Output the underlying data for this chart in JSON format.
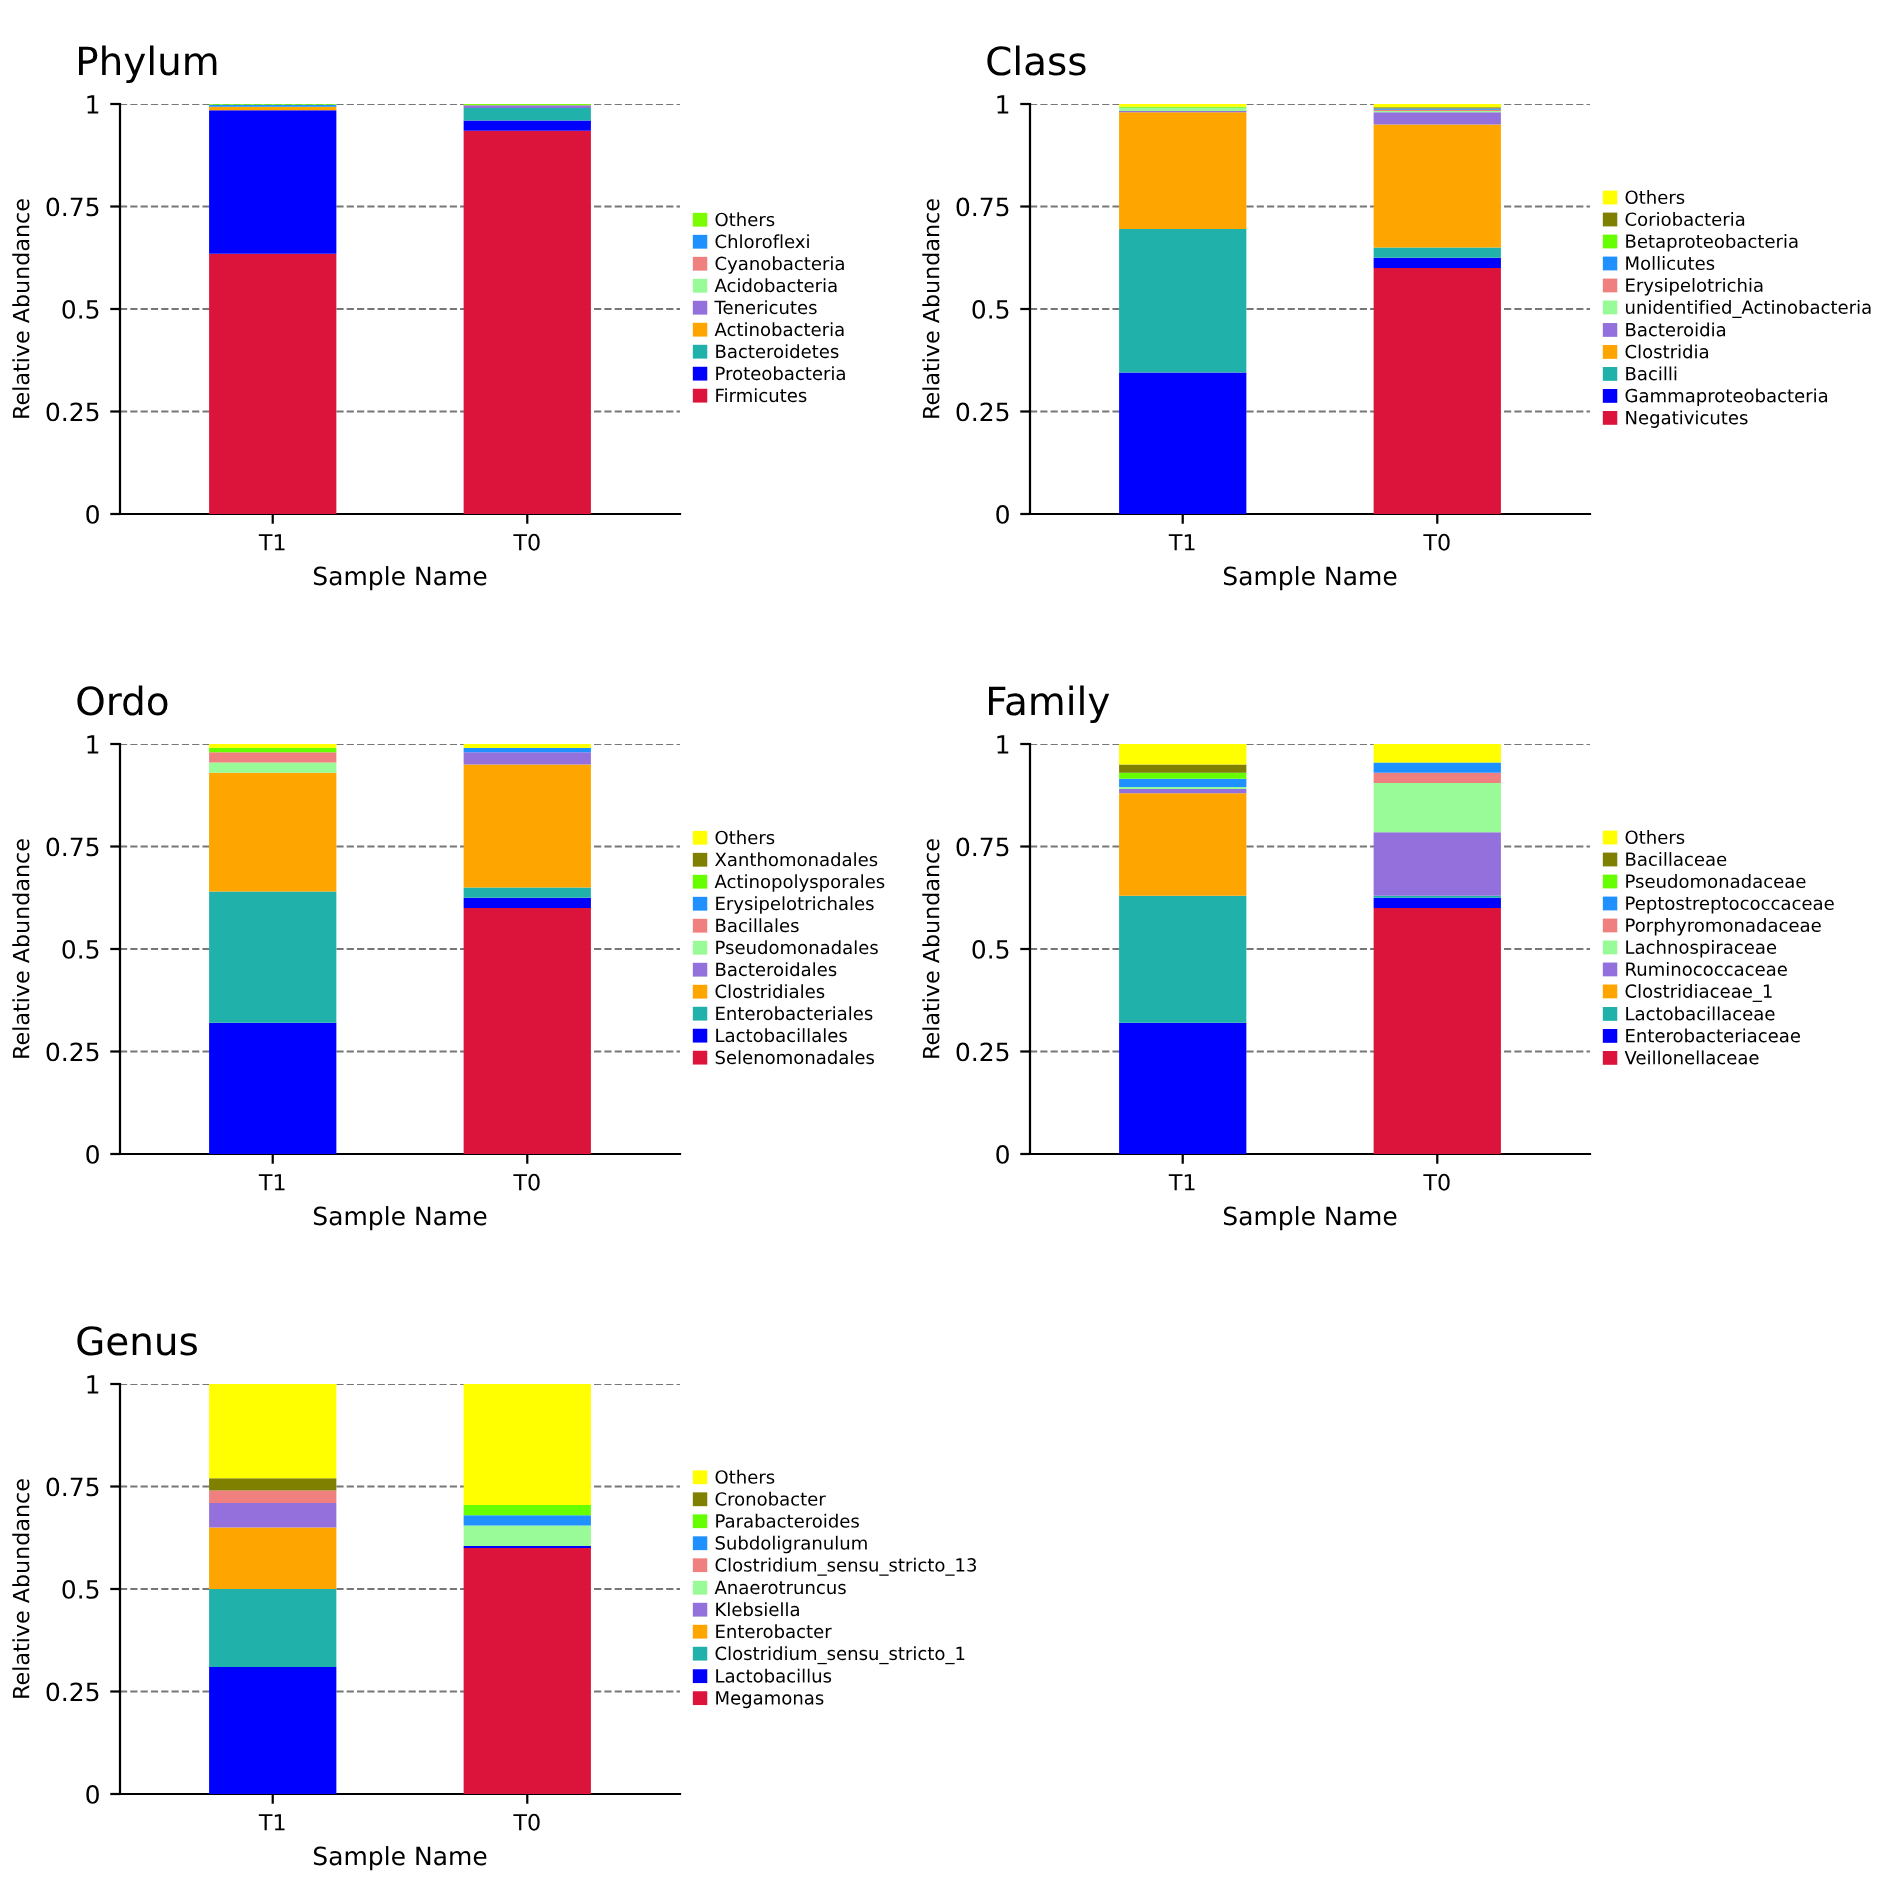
{
  "chart_data": [
    {
      "type": "bar",
      "title": "Phylum",
      "xlabel": "Sample Name",
      "ylabel": "Relative Abundance",
      "categories": [
        "T1",
        "T0"
      ],
      "stacked": true,
      "ylim": [
        0,
        1
      ],
      "yticks": [
        0,
        0.25,
        0.5,
        0.75,
        1
      ],
      "grid": "y",
      "legend": "right",
      "series": [
        {
          "name": "Firmicutes",
          "color": "#dc143c",
          "values": [
            0.635,
            0.935
          ]
        },
        {
          "name": "Proteobacteria",
          "color": "#0000ff",
          "values": [
            0.35,
            0.025
          ]
        },
        {
          "name": "Bacteroidetes",
          "color": "#20b2aa",
          "values": [
            0,
            0.03
          ]
        },
        {
          "name": "Actinobacteria",
          "color": "#ffa500",
          "values": [
            0.008,
            0
          ]
        },
        {
          "name": "Tenericutes",
          "color": "#9370db",
          "values": [
            0,
            0.007
          ]
        },
        {
          "name": "Acidobacteria",
          "color": "#98fb98",
          "values": [
            0,
            0
          ]
        },
        {
          "name": "Cyanobacteria",
          "color": "#f08080",
          "values": [
            0,
            0
          ]
        },
        {
          "name": "Chloroflexi",
          "color": "#1e90ff",
          "values": [
            0.005,
            0
          ]
        },
        {
          "name": "Others",
          "color": "#7cfc00",
          "values": [
            0.002,
            0.003
          ]
        }
      ]
    },
    {
      "type": "bar",
      "title": "Class",
      "xlabel": "Sample Name",
      "ylabel": "Relative Abundance",
      "categories": [
        "T1",
        "T0"
      ],
      "stacked": true,
      "ylim": [
        0,
        1
      ],
      "yticks": [
        0,
        0.25,
        0.5,
        0.75,
        1
      ],
      "grid": "y",
      "legend": "right",
      "series": [
        {
          "name": "Negativicutes",
          "color": "#dc143c",
          "values": [
            0,
            0.6
          ]
        },
        {
          "name": "Gammaproteobacteria",
          "color": "#0000ff",
          "values": [
            0.345,
            0.025
          ]
        },
        {
          "name": "Bacilli",
          "color": "#20b2aa",
          "values": [
            0.35,
            0.025
          ]
        },
        {
          "name": "Clostridia",
          "color": "#ffa500",
          "values": [
            0.285,
            0.3
          ]
        },
        {
          "name": "Bacteroidia",
          "color": "#9370db",
          "values": [
            0.003,
            0.03
          ]
        },
        {
          "name": "unidentified_Actinobacteria",
          "color": "#98fb98",
          "values": [
            0.008,
            0.003
          ]
        },
        {
          "name": "Erysipelotrichia",
          "color": "#f08080",
          "values": [
            0,
            0.003
          ]
        },
        {
          "name": "Mollicutes",
          "color": "#1e90ff",
          "values": [
            0,
            0.003
          ]
        },
        {
          "name": "Betaproteobacteria",
          "color": "#66ff00",
          "values": [
            0.002,
            0
          ]
        },
        {
          "name": "Coriobacteria",
          "color": "#808000",
          "values": [
            0,
            0.003
          ]
        },
        {
          "name": "Others",
          "color": "#ffff00",
          "values": [
            0.007,
            0.008
          ]
        }
      ]
    },
    {
      "type": "bar",
      "title": "Ordo",
      "xlabel": "Sample Name",
      "ylabel": "Relative Abundance",
      "categories": [
        "T1",
        "T0"
      ],
      "stacked": true,
      "ylim": [
        0,
        1
      ],
      "yticks": [
        0,
        0.25,
        0.5,
        0.75,
        1
      ],
      "grid": "y",
      "legend": "right",
      "series": [
        {
          "name": "Selenomonadales",
          "color": "#dc143c",
          "values": [
            0,
            0.6
          ]
        },
        {
          "name": "Lactobacillales",
          "color": "#0000ff",
          "values": [
            0.32,
            0.025
          ]
        },
        {
          "name": "Enterobacteriales",
          "color": "#20b2aa",
          "values": [
            0.32,
            0.025
          ]
        },
        {
          "name": "Clostridiales",
          "color": "#ffa500",
          "values": [
            0.29,
            0.3
          ]
        },
        {
          "name": "Bacteroidales",
          "color": "#9370db",
          "values": [
            0,
            0.03
          ]
        },
        {
          "name": "Pseudomonadales",
          "color": "#98fb98",
          "values": [
            0.025,
            0
          ]
        },
        {
          "name": "Bacillales",
          "color": "#f08080",
          "values": [
            0.025,
            0
          ]
        },
        {
          "name": "Erysipelotrichales",
          "color": "#1e90ff",
          "values": [
            0,
            0.01
          ]
        },
        {
          "name": "Actinopolysporales",
          "color": "#66ff00",
          "values": [
            0.01,
            0
          ]
        },
        {
          "name": "Xanthomonadales",
          "color": "#808000",
          "values": [
            0,
            0
          ]
        },
        {
          "name": "Others",
          "color": "#ffff00",
          "values": [
            0.01,
            0.01
          ]
        }
      ]
    },
    {
      "type": "bar",
      "title": "Family",
      "xlabel": "Sample Name",
      "ylabel": "Relative Abundance",
      "categories": [
        "T1",
        "T0"
      ],
      "stacked": true,
      "ylim": [
        0,
        1
      ],
      "yticks": [
        0,
        0.25,
        0.5,
        0.75,
        1
      ],
      "grid": "y",
      "legend": "right",
      "series": [
        {
          "name": "Veillonellaceae",
          "color": "#dc143c",
          "values": [
            0,
            0.6
          ]
        },
        {
          "name": "Enterobacteriaceae",
          "color": "#0000ff",
          "values": [
            0.32,
            0.025
          ]
        },
        {
          "name": "Lactobacillaceae",
          "color": "#20b2aa",
          "values": [
            0.31,
            0.005
          ]
        },
        {
          "name": "Clostridiaceae_1",
          "color": "#ffa500",
          "values": [
            0.25,
            0
          ]
        },
        {
          "name": "Ruminococcaceae",
          "color": "#9370db",
          "values": [
            0.01,
            0.155
          ]
        },
        {
          "name": "Lachnospiraceae",
          "color": "#98fb98",
          "values": [
            0.005,
            0.12
          ]
        },
        {
          "name": "Porphyromonadaceae",
          "color": "#f08080",
          "values": [
            0,
            0.025
          ]
        },
        {
          "name": "Peptostreptococcaceae",
          "color": "#1e90ff",
          "values": [
            0.02,
            0.025
          ]
        },
        {
          "name": "Pseudomonadaceae",
          "color": "#66ff00",
          "values": [
            0.015,
            0
          ]
        },
        {
          "name": "Bacillaceae",
          "color": "#808000",
          "values": [
            0.02,
            0
          ]
        },
        {
          "name": "Others",
          "color": "#ffff00",
          "values": [
            0.05,
            0.045
          ]
        }
      ]
    },
    {
      "type": "bar",
      "title": "Genus",
      "xlabel": "Sample Name",
      "ylabel": "Relative Abundance",
      "categories": [
        "T1",
        "T0"
      ],
      "stacked": true,
      "ylim": [
        0,
        1
      ],
      "yticks": [
        0,
        0.25,
        0.5,
        0.75,
        1
      ],
      "grid": "y",
      "legend": "right",
      "series": [
        {
          "name": "Megamonas",
          "color": "#dc143c",
          "values": [
            0,
            0.6
          ]
        },
        {
          "name": "Lactobacillus",
          "color": "#0000ff",
          "values": [
            0.31,
            0.005
          ]
        },
        {
          "name": "Clostridium_sensu_stricto_1",
          "color": "#20b2aa",
          "values": [
            0.19,
            0
          ]
        },
        {
          "name": "Enterobacter",
          "color": "#ffa500",
          "values": [
            0.15,
            0
          ]
        },
        {
          "name": "Klebsiella",
          "color": "#9370db",
          "values": [
            0.06,
            0
          ]
        },
        {
          "name": "Anaerotruncus",
          "color": "#98fb98",
          "values": [
            0,
            0.05
          ]
        },
        {
          "name": "Clostridium_sensu_stricto_13",
          "color": "#f08080",
          "values": [
            0.03,
            0
          ]
        },
        {
          "name": "Subdoligranulum",
          "color": "#1e90ff",
          "values": [
            0,
            0.025
          ]
        },
        {
          "name": "Parabacteroides",
          "color": "#66ff00",
          "values": [
            0,
            0.025
          ]
        },
        {
          "name": "Cronobacter",
          "color": "#808000",
          "values": [
            0.03,
            0
          ]
        },
        {
          "name": "Others",
          "color": "#ffff00",
          "values": [
            0.23,
            0.295
          ]
        }
      ]
    }
  ]
}
